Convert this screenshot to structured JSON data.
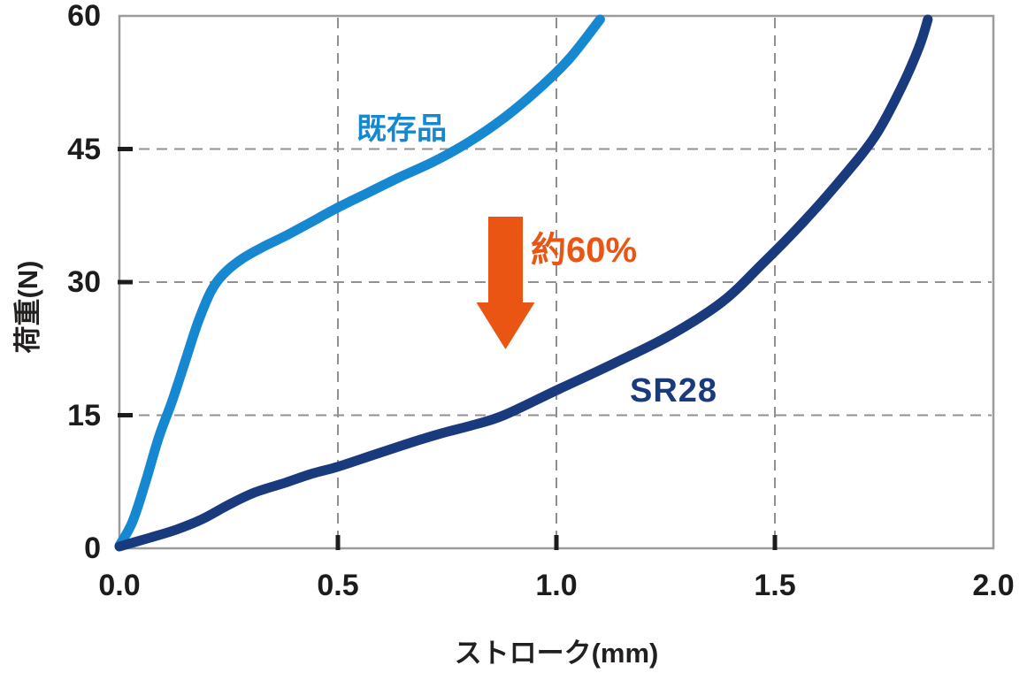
{
  "chart_data": {
    "type": "line",
    "title": "",
    "xlabel": "ストローク(mm)",
    "ylabel": "荷重(N)",
    "xlim": [
      0.0,
      2.0
    ],
    "ylim": [
      0,
      60
    ],
    "x_ticks": [
      0.0,
      0.5,
      1.0,
      1.5,
      2.0
    ],
    "x_tick_labels": [
      "0.0",
      "0.5",
      "1.0",
      "1.5",
      "2.0"
    ],
    "y_ticks": [
      0,
      15,
      30,
      45,
      60
    ],
    "y_tick_labels": [
      "0",
      "15",
      "30",
      "45",
      "60"
    ],
    "grid": "dashed",
    "grid_color": "#909090",
    "axis_color": "#9b9b9b",
    "tick_color": "#1c1c1c",
    "legend": "inline-curve-labels",
    "series": [
      {
        "name": "既存品",
        "color": "#1588D1",
        "points": [
          [
            0.0,
            0.3
          ],
          [
            0.03,
            3.0
          ],
          [
            0.06,
            7.5
          ],
          [
            0.09,
            12.5
          ],
          [
            0.12,
            16.5
          ],
          [
            0.15,
            21.0
          ],
          [
            0.18,
            25.5
          ],
          [
            0.21,
            29.0
          ],
          [
            0.24,
            31.0
          ],
          [
            0.28,
            32.6
          ],
          [
            0.33,
            34.0
          ],
          [
            0.38,
            35.2
          ],
          [
            0.44,
            36.8
          ],
          [
            0.5,
            38.4
          ],
          [
            0.57,
            40.1
          ],
          [
            0.64,
            41.8
          ],
          [
            0.72,
            43.6
          ],
          [
            0.8,
            45.8
          ],
          [
            0.88,
            48.5
          ],
          [
            0.96,
            51.8
          ],
          [
            1.03,
            55.2
          ],
          [
            1.1,
            59.6
          ]
        ]
      },
      {
        "name": "SR28",
        "color": "#1A3A7E",
        "points": [
          [
            0.0,
            0.2
          ],
          [
            0.07,
            1.2
          ],
          [
            0.13,
            2.1
          ],
          [
            0.19,
            3.3
          ],
          [
            0.25,
            4.9
          ],
          [
            0.31,
            6.3
          ],
          [
            0.38,
            7.4
          ],
          [
            0.44,
            8.4
          ],
          [
            0.5,
            9.2
          ],
          [
            0.58,
            10.5
          ],
          [
            0.66,
            11.8
          ],
          [
            0.74,
            13.0
          ],
          [
            0.81,
            13.9
          ],
          [
            0.88,
            15.0
          ],
          [
            1.0,
            17.8
          ],
          [
            1.13,
            20.8
          ],
          [
            1.26,
            24.0
          ],
          [
            1.38,
            27.8
          ],
          [
            1.47,
            32.0
          ],
          [
            1.56,
            36.5
          ],
          [
            1.65,
            41.5
          ],
          [
            1.73,
            46.5
          ],
          [
            1.79,
            52.0
          ],
          [
            1.83,
            56.5
          ],
          [
            1.85,
            59.6
          ]
        ]
      }
    ],
    "annotation": {
      "label": "約60%",
      "color": "#EA5514",
      "arrow": "down"
    }
  }
}
